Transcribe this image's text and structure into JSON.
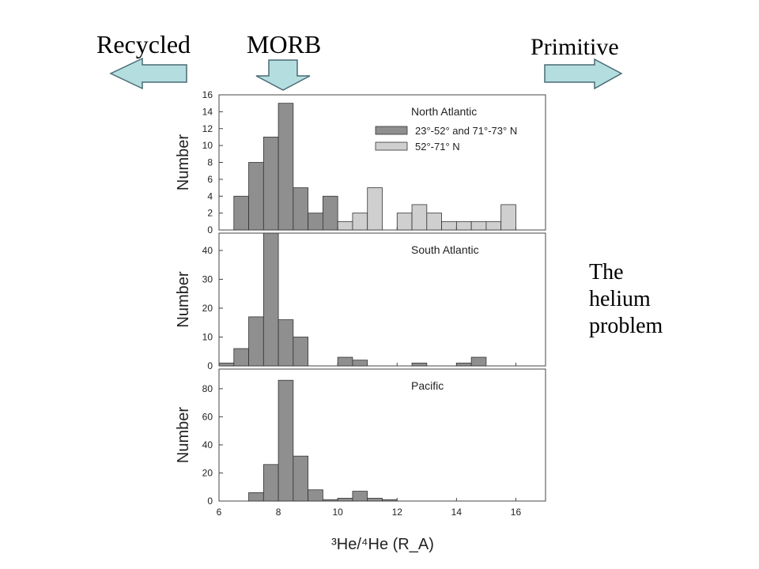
{
  "labels": {
    "recycled": "Recycled",
    "morb": "MORB",
    "primitive": "Primitive",
    "side_note": [
      "The",
      "helium",
      "problem"
    ]
  },
  "colors": {
    "arrow_fill": "#b4dde0",
    "arrow_stroke": "#4a6b74",
    "bar_dark": "#8f8f8f",
    "bar_light": "#cfcfcf"
  },
  "chart_data": [
    {
      "type": "bar",
      "title": "North Atlantic",
      "ylabel": "Number",
      "xlabel": "",
      "bin_width": 0.5,
      "xlim": [
        6,
        17
      ],
      "ylim": [
        0,
        16
      ],
      "yticks": [
        0,
        2,
        4,
        6,
        8,
        10,
        12,
        14,
        16
      ],
      "legend_position": "top-right",
      "series": [
        {
          "name": "23°-52° and 71°-73° N",
          "color": "#8f8f8f",
          "bins": [
            {
              "x": 6.5,
              "value": 4
            },
            {
              "x": 7.0,
              "value": 8
            },
            {
              "x": 7.5,
              "value": 11
            },
            {
              "x": 8.0,
              "value": 15
            },
            {
              "x": 8.5,
              "value": 5
            },
            {
              "x": 9.0,
              "value": 2
            },
            {
              "x": 9.5,
              "value": 4
            }
          ]
        },
        {
          "name": "52°-71° N",
          "color": "#cfcfcf",
          "bins": [
            {
              "x": 10.0,
              "value": 1
            },
            {
              "x": 10.5,
              "value": 2
            },
            {
              "x": 11.0,
              "value": 5
            },
            {
              "x": 12.0,
              "value": 2
            },
            {
              "x": 12.5,
              "value": 3
            },
            {
              "x": 13.0,
              "value": 2
            },
            {
              "x": 13.5,
              "value": 1
            },
            {
              "x": 14.0,
              "value": 1
            },
            {
              "x": 14.5,
              "value": 1
            },
            {
              "x": 15.0,
              "value": 1
            },
            {
              "x": 15.5,
              "value": 3
            }
          ]
        }
      ]
    },
    {
      "type": "bar",
      "title": "South Atlantic",
      "ylabel": "Number",
      "xlabel": "",
      "bin_width": 0.5,
      "xlim": [
        6,
        17
      ],
      "ylim": [
        0,
        46
      ],
      "yticks": [
        0,
        10,
        20,
        30,
        40
      ],
      "series": [
        {
          "name": "",
          "color": "#8f8f8f",
          "bins": [
            {
              "x": 6.0,
              "value": 1
            },
            {
              "x": 6.5,
              "value": 6
            },
            {
              "x": 7.0,
              "value": 17
            },
            {
              "x": 7.5,
              "value": 46
            },
            {
              "x": 8.0,
              "value": 16
            },
            {
              "x": 8.5,
              "value": 10
            },
            {
              "x": 10.0,
              "value": 3
            },
            {
              "x": 10.5,
              "value": 2
            },
            {
              "x": 12.5,
              "value": 1
            },
            {
              "x": 14.0,
              "value": 1
            },
            {
              "x": 14.5,
              "value": 3
            }
          ]
        }
      ]
    },
    {
      "type": "bar",
      "title": "Pacific",
      "ylabel": "Number",
      "xlabel": "³He/⁴He (R_A)",
      "bin_width": 0.5,
      "xlim": [
        6,
        17
      ],
      "ylim": [
        0,
        94
      ],
      "yticks": [
        0,
        20,
        40,
        60,
        80
      ],
      "xticks": [
        6,
        8,
        10,
        12,
        14,
        16
      ],
      "series": [
        {
          "name": "",
          "color": "#8f8f8f",
          "bins": [
            {
              "x": 7.0,
              "value": 6
            },
            {
              "x": 7.5,
              "value": 26
            },
            {
              "x": 8.0,
              "value": 86
            },
            {
              "x": 8.5,
              "value": 32
            },
            {
              "x": 9.0,
              "value": 8
            },
            {
              "x": 9.5,
              "value": 1
            },
            {
              "x": 10.0,
              "value": 2
            },
            {
              "x": 10.5,
              "value": 7
            },
            {
              "x": 11.0,
              "value": 2
            },
            {
              "x": 11.5,
              "value": 1
            }
          ]
        }
      ]
    }
  ]
}
